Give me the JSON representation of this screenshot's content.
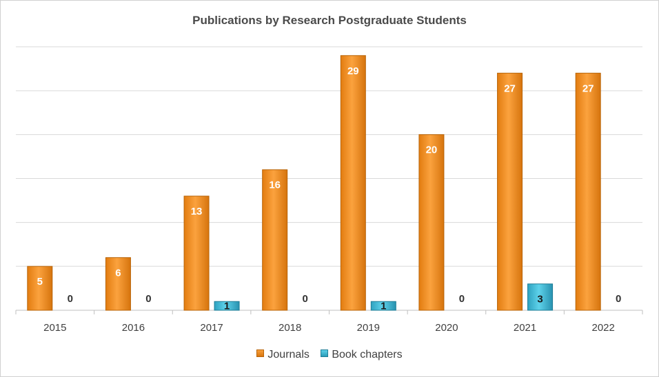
{
  "chart_data": {
    "type": "bar",
    "title": "Publications by Research Postgraduate Students",
    "categories": [
      "2015",
      "2016",
      "2017",
      "2018",
      "2019",
      "2020",
      "2021",
      "2022"
    ],
    "series": [
      {
        "name": "Journals",
        "values": [
          5,
          6,
          13,
          16,
          29,
          20,
          27,
          27
        ],
        "color": "#f0901f"
      },
      {
        "name": "Book chapters",
        "values": [
          0,
          0,
          1,
          0,
          1,
          0,
          3,
          0
        ],
        "color": "#3cb4d2"
      }
    ],
    "ylim": [
      0,
      30
    ],
    "grid": true,
    "legend": "bottom"
  }
}
